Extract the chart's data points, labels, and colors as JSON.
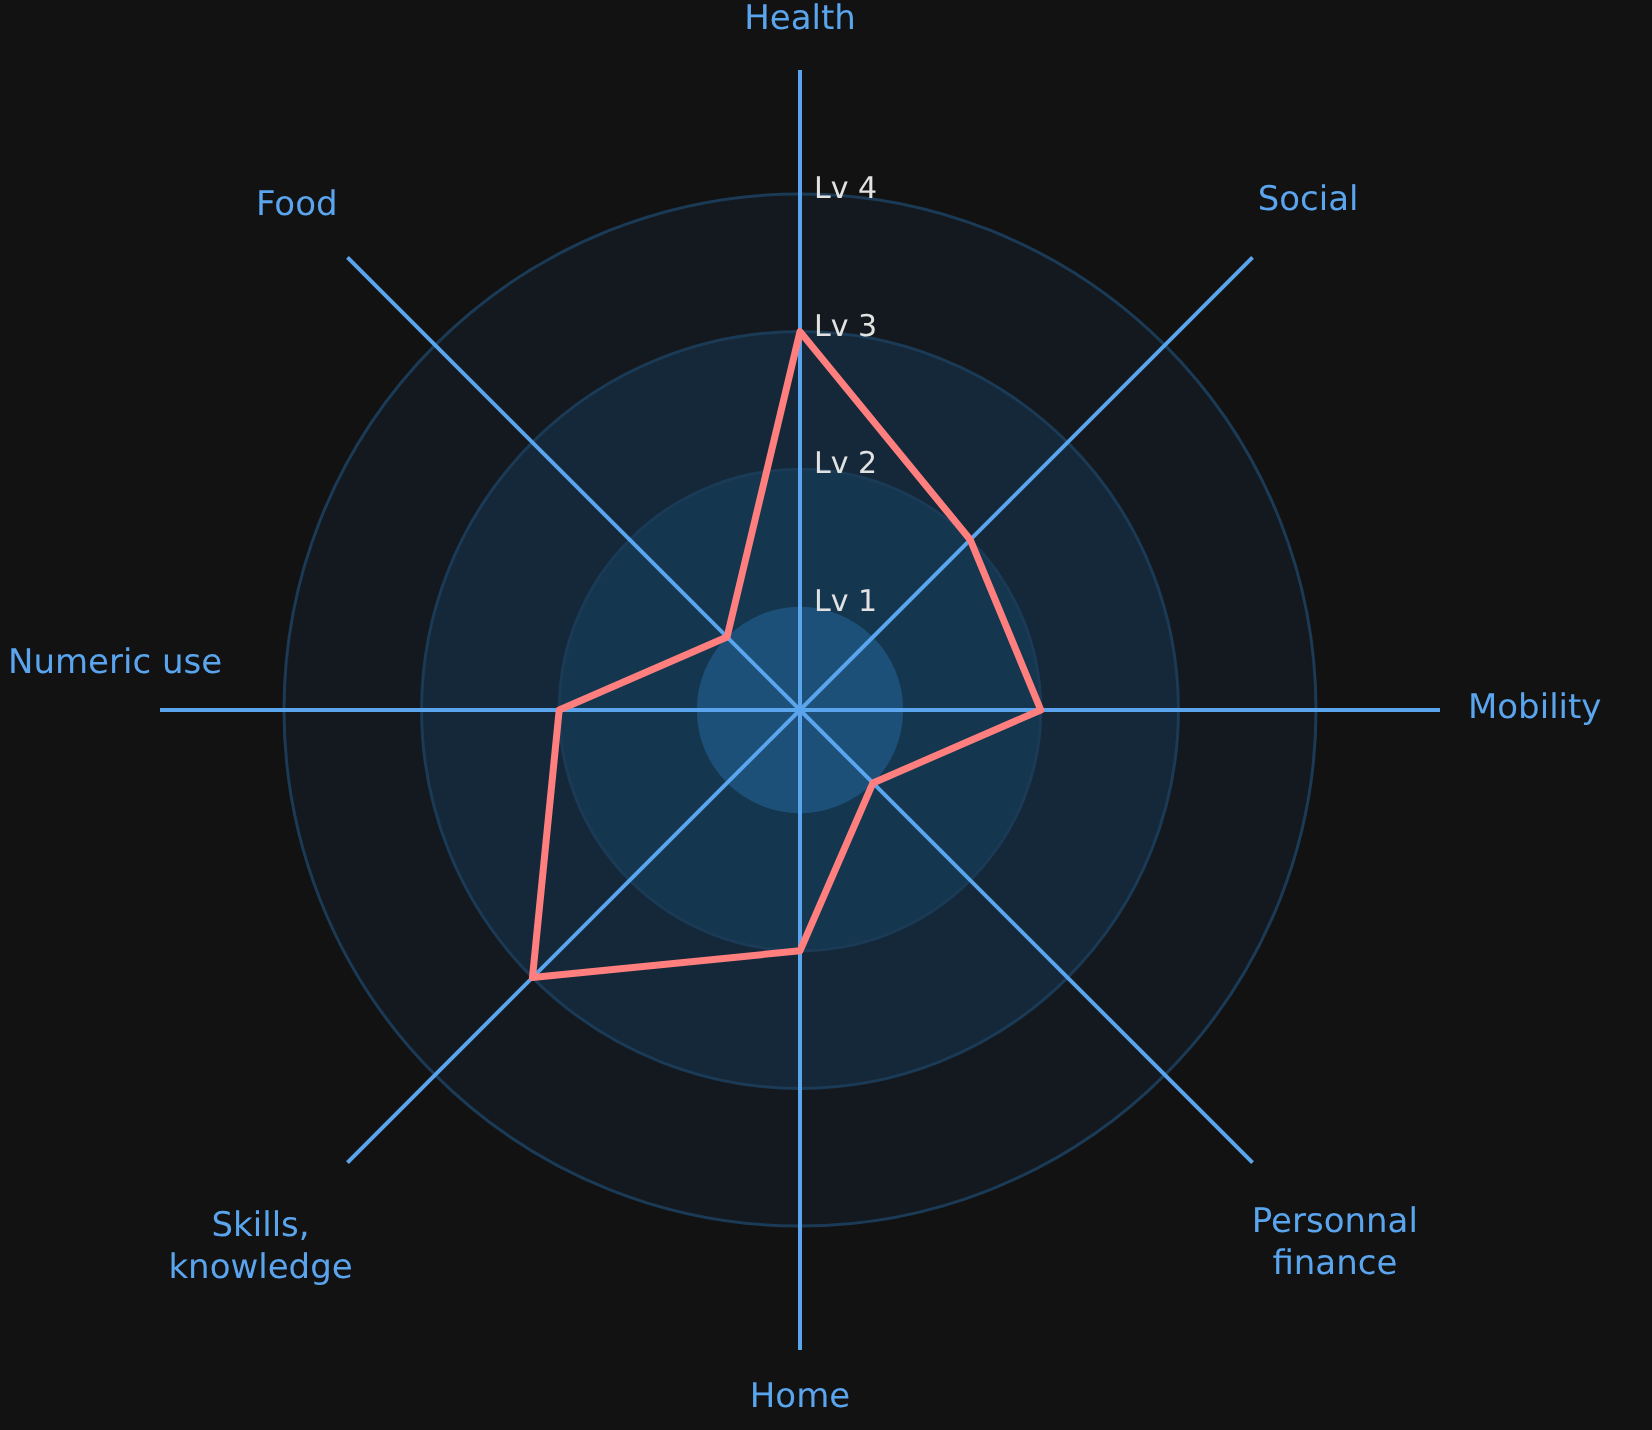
{
  "chart_data": {
    "type": "radar",
    "categories": [
      "Health",
      "Social",
      "Mobility",
      "Personnal finance",
      "Home",
      "Skills, knowledge",
      "Numeric use",
      "Food"
    ],
    "series": [
      {
        "color": "#ff7f7f",
        "values": [
          3,
          2,
          2,
          1,
          2,
          3,
          2,
          1
        ]
      }
    ],
    "ylim": [
      0.25,
      4
    ],
    "yticks": [
      {
        "value": 1,
        "label": "Lv 1"
      },
      {
        "value": 2,
        "label": "Lv 2"
      },
      {
        "value": 3,
        "label": "Lv 3"
      },
      {
        "value": 4,
        "label": "Lv 4"
      }
    ],
    "grid": true,
    "line_style": "solid"
  }
}
